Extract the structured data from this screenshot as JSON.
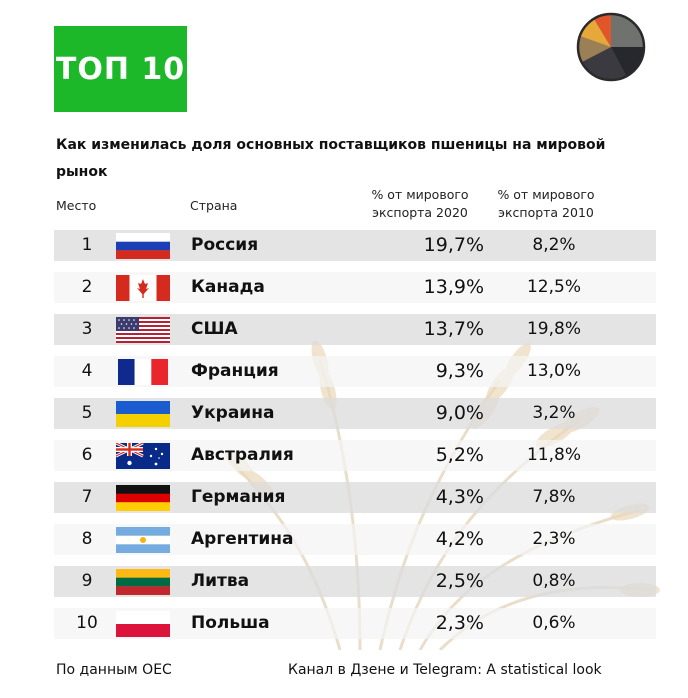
{
  "badge": "ТОП 10",
  "title": "Как изменилась доля основных поставщиков пшеницы на мировой рынок",
  "headers": {
    "place": "Место",
    "country": "Страна",
    "p2020": "% от мирового экспорта 2020",
    "p2010": "% от мирового экспорта 2010"
  },
  "rows": [
    {
      "place": "1",
      "country": "Россия",
      "flag": "russia-flag-icon",
      "p2020": "19,7%",
      "p2010": "8,2%"
    },
    {
      "place": "2",
      "country": "Канада",
      "flag": "canada-flag-icon",
      "p2020": "13,9%",
      "p2010": "12,5%"
    },
    {
      "place": "3",
      "country": "США",
      "flag": "usa-flag-icon",
      "p2020": "13,7%",
      "p2010": "19,8%"
    },
    {
      "place": "4",
      "country": "Франция",
      "flag": "france-flag-icon",
      "p2020": "9,3%",
      "p2010": "13,0%"
    },
    {
      "place": "5",
      "country": "Украина",
      "flag": "ukraine-flag-icon",
      "p2020": "9,0%",
      "p2010": "3,2%"
    },
    {
      "place": "6",
      "country": "Австралия",
      "flag": "australia-flag-icon",
      "p2020": "5,2%",
      "p2010": "11,8%"
    },
    {
      "place": "7",
      "country": "Германия",
      "flag": "germany-flag-icon",
      "p2020": "4,3%",
      "p2010": "7,8%"
    },
    {
      "place": "8",
      "country": "Аргентина",
      "flag": "argentina-flag-icon",
      "p2020": "4,2%",
      "p2010": "2,3%"
    },
    {
      "place": "9",
      "country": "Литва",
      "flag": "lithuania-flag-icon",
      "p2020": "2,5%",
      "p2010": "0,8%"
    },
    {
      "place": "10",
      "country": "Польша",
      "flag": "poland-flag-icon",
      "p2020": "2,3%",
      "p2010": "0,6%"
    }
  ],
  "footer": {
    "source": "По данным OEC",
    "channel": "Канал в Дзене и Telegram: A statistical look"
  },
  "colors": {
    "badge": "#1db82a",
    "row_shade": "#dcdcdc",
    "row_light": "#f4f4f4"
  }
}
